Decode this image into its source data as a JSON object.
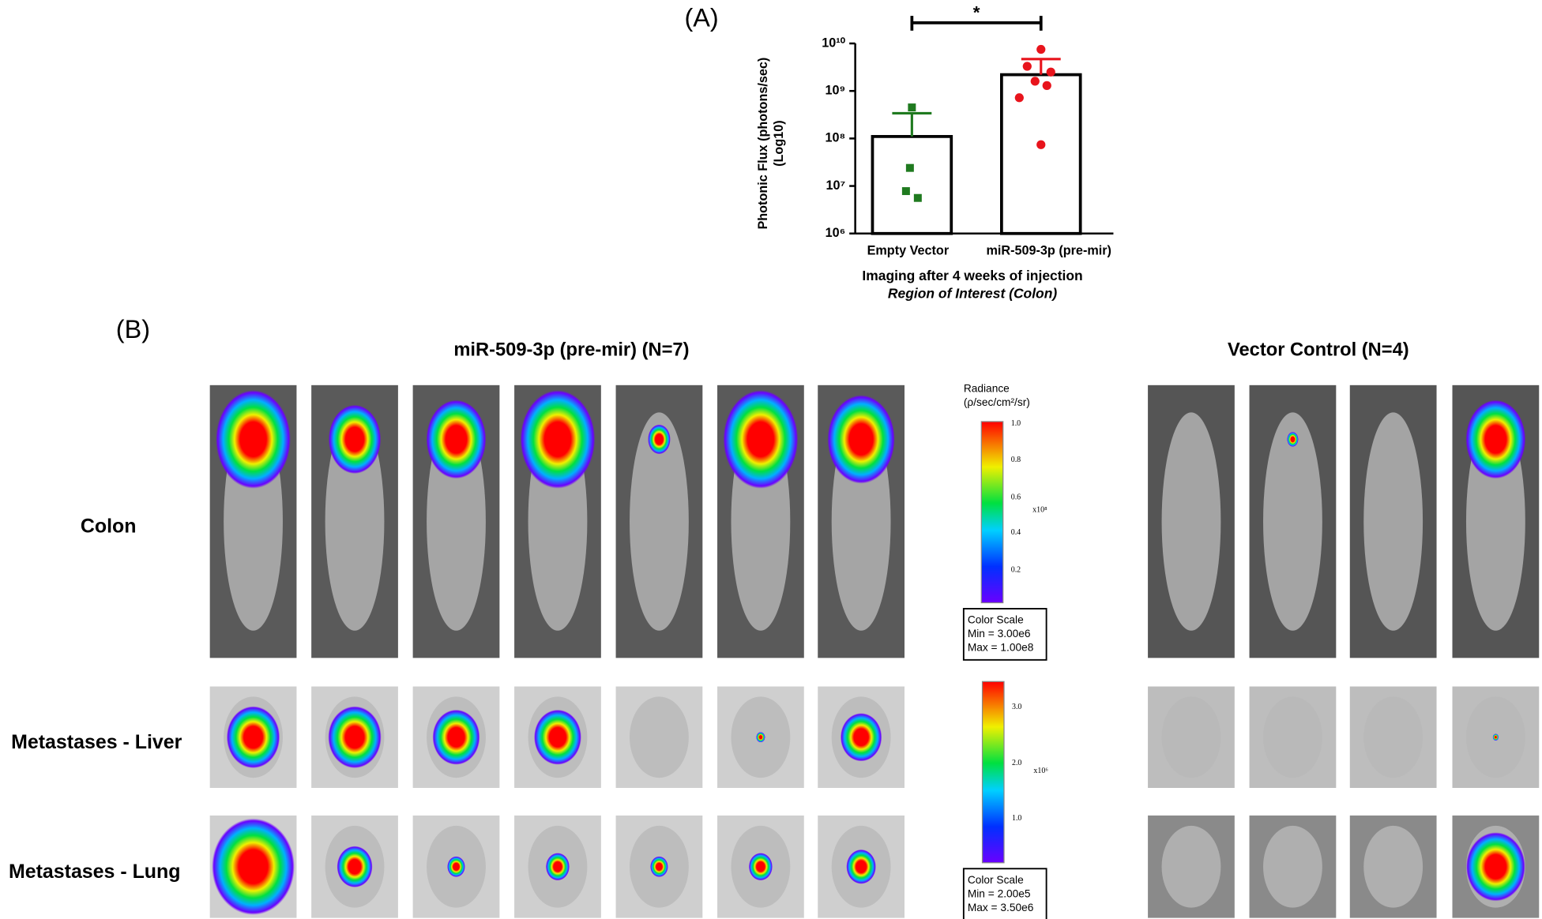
{
  "chart_data": {
    "type": "bar",
    "title": "(A)",
    "categories": [
      "Empty Vector",
      "miR-509-3p (pre-mir)"
    ],
    "values": [
      110000000,
      2200000000
    ],
    "errors": [
      230000000,
      2500000000
    ],
    "points": [
      [
        450000000,
        24000000,
        7800000,
        5600000
      ],
      [
        7500000000,
        3300000000,
        2500000000,
        1600000000,
        1300000000,
        720000000,
        74000000
      ]
    ],
    "colors": [
      "#1f7a1f",
      "#e8141c"
    ],
    "yscale": "log",
    "ylim": [
      1000000,
      10000000000
    ],
    "yticks": [
      {
        "value": 1000000,
        "label": "10⁶"
      },
      {
        "value": 10000000,
        "label": "10⁷"
      },
      {
        "value": 100000000,
        "label": "10⁸"
      },
      {
        "value": 1000000000,
        "label": "10⁹"
      },
      {
        "value": 10000000000,
        "label": "10¹⁰"
      }
    ],
    "ylabel": [
      "Photonic Flux (photons/sec)",
      "(Log10)"
    ],
    "xlabel": "Imaging after 4 weeks of injection",
    "xlabel_note": "Region of Interest (Colon)",
    "annotation": "*"
  },
  "panel_b": {
    "label": "(B)",
    "groups": [
      {
        "title": "miR-509-3p (pre-mir) (N=7)",
        "count": 7
      },
      {
        "title": "Vector Control (N=4)",
        "count": 4
      }
    ],
    "rows": [
      "Colon",
      "Metastases - Liver",
      "Metastases - Lung"
    ],
    "scales": [
      {
        "title": "Radiance",
        "unit": "(ρ/sec/cm²/sr)",
        "ticks": [
          "1.0",
          "0.8",
          "0.6",
          "0.4",
          "0.2"
        ],
        "multiplier": "x10⁸",
        "box": [
          "Color Scale",
          "Min = 3.00e6",
          "Max = 1.00e8"
        ]
      },
      {
        "ticks": [
          "3.0",
          "2.0",
          "1.0"
        ],
        "multiplier": "x10⁶",
        "box": [
          "Color Scale",
          "Min = 2.00e5",
          "Max = 3.50e6"
        ]
      }
    ]
  }
}
